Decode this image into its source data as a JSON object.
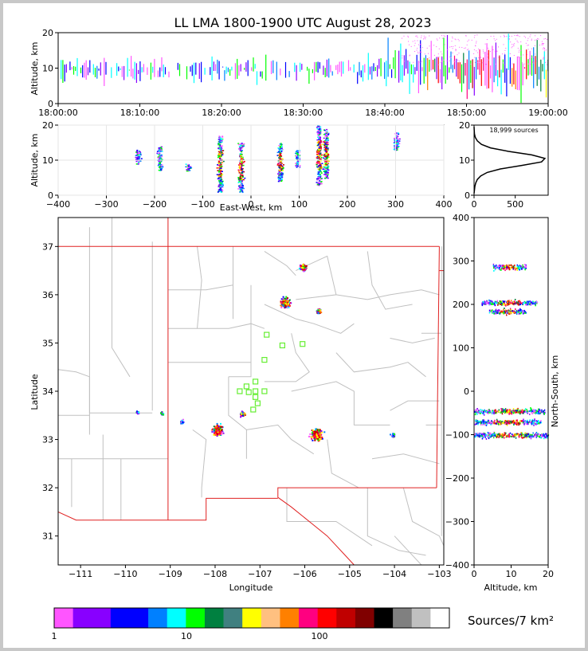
{
  "figure": {
    "title": "LL LMA 1800-1900 UTC August 28, 2023",
    "source_count_label": "18,999 sources",
    "colorbar_label": "Sources/7 km²"
  },
  "chart_data": [
    {
      "id": "time-height",
      "type": "heatmap",
      "ylabel": "Altitude, km",
      "ylim": [
        0,
        20
      ],
      "yticks": [
        "0",
        "10",
        "20"
      ],
      "xticks": [
        "18:00:00",
        "18:10:00",
        "18:20:00",
        "18:30:00",
        "18:40:00",
        "18:50:00",
        "19:00:00"
      ],
      "xlim_minutes": [
        0,
        60
      ]
    },
    {
      "id": "ew-altitude",
      "type": "heatmap",
      "xlabel": "East-West, km",
      "ylabel": "Altitude, km",
      "xlim": [
        -400,
        400
      ],
      "ylim": [
        0,
        20
      ],
      "xticks": [
        "−400",
        "−300",
        "−200",
        "−100",
        "0",
        "100",
        "200",
        "300",
        "400"
      ],
      "yticks": [
        "0",
        "10",
        "20"
      ],
      "cells": [
        {
          "x": -235,
          "alt": [
            9,
            13
          ]
        },
        {
          "x": -190,
          "alt": [
            7,
            14
          ]
        },
        {
          "x": -130,
          "alt": [
            7,
            9
          ]
        },
        {
          "x": -65,
          "alt": [
            1,
            17
          ]
        },
        {
          "x": -22,
          "alt": [
            1,
            15
          ]
        },
        {
          "x": 60,
          "alt": [
            4,
            15
          ]
        },
        {
          "x": 95,
          "alt": [
            8,
            13
          ]
        },
        {
          "x": 140,
          "alt": [
            3,
            20
          ]
        },
        {
          "x": 155,
          "alt": [
            5,
            19
          ]
        },
        {
          "x": 300,
          "alt": [
            13,
            18
          ]
        }
      ]
    },
    {
      "id": "altitude-histogram",
      "type": "line",
      "xticks": [
        "0",
        "500"
      ],
      "yticks": [
        "0",
        "10",
        "20"
      ],
      "xlim": [
        0,
        900
      ],
      "ylim": [
        0,
        20
      ],
      "points": [
        [
          0,
          0.5
        ],
        [
          5,
          1.5
        ],
        [
          10,
          2.5
        ],
        [
          20,
          3.5
        ],
        [
          40,
          4.5
        ],
        [
          80,
          5.5
        ],
        [
          160,
          6.5
        ],
        [
          320,
          7.5
        ],
        [
          580,
          8.5
        ],
        [
          820,
          9.5
        ],
        [
          860,
          10.5
        ],
        [
          700,
          11.5
        ],
        [
          420,
          12.5
        ],
        [
          200,
          13.5
        ],
        [
          90,
          14.5
        ],
        [
          40,
          15.5
        ],
        [
          15,
          16.5
        ],
        [
          5,
          17.5
        ],
        [
          2,
          18.5
        ],
        [
          0,
          19.5
        ]
      ]
    },
    {
      "id": "plan-view",
      "type": "scatter",
      "xlabel": "Longitude",
      "ylabel": "Latitude",
      "xlim": [
        -111.5,
        -102.9
      ],
      "ylim": [
        30.4,
        37.6
      ],
      "xticks": [
        "−111",
        "−110",
        "−109",
        "−108",
        "−107",
        "−106",
        "−105",
        "−104",
        "−103"
      ],
      "yticks": [
        "31",
        "32",
        "33",
        "34",
        "35",
        "36",
        "37"
      ],
      "clusters": [
        {
          "lon": -106.05,
          "lat": 36.58,
          "spread": 0.08,
          "density": "high"
        },
        {
          "lon": -106.45,
          "lat": 35.85,
          "spread": 0.12,
          "density": "high"
        },
        {
          "lon": -105.7,
          "lat": 35.67,
          "spread": 0.06,
          "density": "medium"
        },
        {
          "lon": -107.95,
          "lat": 33.2,
          "spread": 0.14,
          "density": "high"
        },
        {
          "lon": -107.4,
          "lat": 33.55,
          "spread": 0.07,
          "density": "medium"
        },
        {
          "lon": -105.75,
          "lat": 33.12,
          "spread": 0.15,
          "density": "high"
        },
        {
          "lon": -109.2,
          "lat": 33.55,
          "spread": 0.05,
          "density": "low"
        },
        {
          "lon": -109.75,
          "lat": 33.57,
          "spread": 0.04,
          "density": "low"
        },
        {
          "lon": -108.75,
          "lat": 33.38,
          "spread": 0.05,
          "density": "low"
        },
        {
          "lon": -104.05,
          "lat": 33.1,
          "spread": 0.08,
          "density": "low"
        }
      ],
      "stations": [
        [
          -106.85,
          35.17
        ],
        [
          -106.5,
          34.95
        ],
        [
          -106.05,
          34.98
        ],
        [
          -106.9,
          34.65
        ],
        [
          -107.1,
          34.2
        ],
        [
          -107.3,
          34.1
        ],
        [
          -107.45,
          34.0
        ],
        [
          -107.25,
          33.98
        ],
        [
          -107.1,
          34.0
        ],
        [
          -106.9,
          34.0
        ],
        [
          -107.1,
          33.88
        ],
        [
          -107.05,
          33.75
        ],
        [
          -107.15,
          33.62
        ]
      ]
    },
    {
      "id": "ns-altitude",
      "type": "heatmap",
      "xlabel": "Altitude, km",
      "ylabel": "North-South, km",
      "xlim": [
        0,
        20
      ],
      "ylim": [
        -400,
        400
      ],
      "xticks": [
        "0",
        "10",
        "20"
      ],
      "yticks": [
        "−400",
        "−300",
        "−200",
        "−100",
        "0",
        "100",
        "200",
        "300",
        "400"
      ],
      "cells": [
        {
          "ns": 287,
          "alt": [
            5,
            14
          ]
        },
        {
          "ns": 205,
          "alt": [
            2,
            17
          ]
        },
        {
          "ns": 185,
          "alt": [
            4,
            14
          ]
        },
        {
          "ns": -45,
          "alt": [
            0,
            19
          ]
        },
        {
          "ns": -70,
          "alt": [
            0,
            18
          ]
        },
        {
          "ns": -100,
          "alt": [
            0,
            20
          ]
        }
      ]
    }
  ],
  "colorbar": {
    "tick_labels": [
      "1",
      "10",
      "100"
    ],
    "colors": [
      "#ff55ff",
      "#8800ff",
      "#8800ff",
      "#0000ff",
      "#0000ff",
      "#0080ff",
      "#00ffff",
      "#00ff00",
      "#008040",
      "#408080",
      "#ffff00",
      "#ffc080",
      "#ff8000",
      "#ff0080",
      "#ff0000",
      "#c00000",
      "#800000",
      "#000000",
      "#808080",
      "#c0c0c0",
      "#ffffff"
    ]
  }
}
